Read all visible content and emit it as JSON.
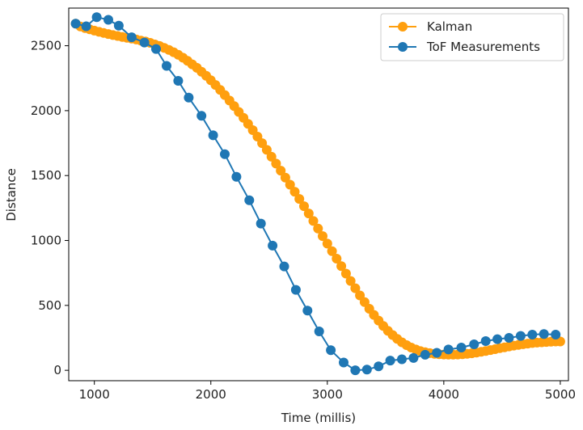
{
  "chart_data": {
    "type": "line",
    "xlabel": "Time (millis)",
    "ylabel": "Distance",
    "xlim": [
      780,
      5070
    ],
    "ylim": [
      -80,
      2790
    ],
    "x_ticks": [
      1000,
      2000,
      3000,
      4000,
      5000
    ],
    "y_ticks": [
      0,
      500,
      1000,
      1500,
      2000,
      2500
    ],
    "x_tick_labels": [
      "1000",
      "2000",
      "3000",
      "4000",
      "5000"
    ],
    "y_tick_labels": [
      "0",
      "500",
      "1000",
      "1500",
      "2000",
      "2500"
    ],
    "grid": false,
    "legend": "top-right",
    "series": [
      {
        "name": "Kalman",
        "color": "#ff9f0e",
        "marker": "circle",
        "points": [
          [
            840,
            2670
          ],
          [
            880,
            2648
          ],
          [
            920,
            2636
          ],
          [
            960,
            2626
          ],
          [
            1000,
            2616
          ],
          [
            1040,
            2607
          ],
          [
            1080,
            2598
          ],
          [
            1120,
            2590
          ],
          [
            1160,
            2582
          ],
          [
            1200,
            2575
          ],
          [
            1240,
            2568
          ],
          [
            1280,
            2561
          ],
          [
            1320,
            2555
          ],
          [
            1360,
            2548
          ],
          [
            1400,
            2540
          ],
          [
            1440,
            2532
          ],
          [
            1480,
            2522
          ],
          [
            1520,
            2510
          ],
          [
            1560,
            2498
          ],
          [
            1600,
            2484
          ],
          [
            1640,
            2468
          ],
          [
            1680,
            2450
          ],
          [
            1720,
            2430
          ],
          [
            1760,
            2408
          ],
          [
            1800,
            2384
          ],
          [
            1840,
            2357
          ],
          [
            1880,
            2330
          ],
          [
            1920,
            2300
          ],
          [
            1960,
            2268
          ],
          [
            2000,
            2234
          ],
          [
            2040,
            2198
          ],
          [
            2080,
            2160
          ],
          [
            2120,
            2120
          ],
          [
            2160,
            2078
          ],
          [
            2200,
            2035
          ],
          [
            2240,
            1990
          ],
          [
            2280,
            1945
          ],
          [
            2320,
            1898
          ],
          [
            2360,
            1850
          ],
          [
            2400,
            1800
          ],
          [
            2440,
            1750
          ],
          [
            2480,
            1698
          ],
          [
            2520,
            1645
          ],
          [
            2560,
            1592
          ],
          [
            2600,
            1538
          ],
          [
            2640,
            1484
          ],
          [
            2680,
            1430
          ],
          [
            2720,
            1375
          ],
          [
            2760,
            1320
          ],
          [
            2800,
            1264
          ],
          [
            2840,
            1208
          ],
          [
            2880,
            1150
          ],
          [
            2920,
            1092
          ],
          [
            2960,
            1034
          ],
          [
            3000,
            976
          ],
          [
            3040,
            918
          ],
          [
            3080,
            860
          ],
          [
            3120,
            802
          ],
          [
            3160,
            745
          ],
          [
            3200,
            688
          ],
          [
            3240,
            632
          ],
          [
            3280,
            577
          ],
          [
            3320,
            525
          ],
          [
            3360,
            474
          ],
          [
            3400,
            427
          ],
          [
            3440,
            383
          ],
          [
            3480,
            342
          ],
          [
            3520,
            305
          ],
          [
            3560,
            272
          ],
          [
            3600,
            242
          ],
          [
            3640,
            216
          ],
          [
            3680,
            194
          ],
          [
            3720,
            175
          ],
          [
            3760,
            160
          ],
          [
            3800,
            148
          ],
          [
            3840,
            139
          ],
          [
            3880,
            132
          ],
          [
            3920,
            127
          ],
          [
            3960,
            124
          ],
          [
            4000,
            122
          ],
          [
            4040,
            121
          ],
          [
            4080,
            121
          ],
          [
            4120,
            122
          ],
          [
            4160,
            124
          ],
          [
            4200,
            127
          ],
          [
            4240,
            131
          ],
          [
            4280,
            136
          ],
          [
            4320,
            142
          ],
          [
            4360,
            149
          ],
          [
            4400,
            156
          ],
          [
            4440,
            163
          ],
          [
            4480,
            170
          ],
          [
            4520,
            177
          ],
          [
            4560,
            184
          ],
          [
            4600,
            190
          ],
          [
            4640,
            196
          ],
          [
            4680,
            201
          ],
          [
            4720,
            206
          ],
          [
            4760,
            210
          ],
          [
            4800,
            213
          ],
          [
            4840,
            216
          ],
          [
            4880,
            218
          ],
          [
            4920,
            220
          ],
          [
            4960,
            222
          ],
          [
            5000,
            222
          ]
        ]
      },
      {
        "name": "ToF Measurements",
        "color": "#1f77b4",
        "marker": "circle",
        "points": [
          [
            840,
            2670
          ],
          [
            930,
            2650
          ],
          [
            1020,
            2720
          ],
          [
            1120,
            2700
          ],
          [
            1210,
            2655
          ],
          [
            1320,
            2565
          ],
          [
            1430,
            2525
          ],
          [
            1530,
            2475
          ],
          [
            1620,
            2345
          ],
          [
            1720,
            2230
          ],
          [
            1810,
            2100
          ],
          [
            1920,
            1960
          ],
          [
            2020,
            1810
          ],
          [
            2120,
            1665
          ],
          [
            2220,
            1490
          ],
          [
            2330,
            1310
          ],
          [
            2430,
            1130
          ],
          [
            2530,
            960
          ],
          [
            2630,
            800
          ],
          [
            2730,
            620
          ],
          [
            2830,
            460
          ],
          [
            2930,
            300
          ],
          [
            3030,
            155
          ],
          [
            3140,
            60
          ],
          [
            3240,
            0
          ],
          [
            3340,
            5
          ],
          [
            3440,
            30
          ],
          [
            3540,
            75
          ],
          [
            3640,
            85
          ],
          [
            3740,
            95
          ],
          [
            3840,
            120
          ],
          [
            3940,
            135
          ],
          [
            4040,
            160
          ],
          [
            4150,
            175
          ],
          [
            4260,
            200
          ],
          [
            4360,
            225
          ],
          [
            4460,
            240
          ],
          [
            4560,
            250
          ],
          [
            4660,
            265
          ],
          [
            4760,
            275
          ],
          [
            4860,
            280
          ],
          [
            4960,
            275
          ]
        ]
      }
    ]
  }
}
